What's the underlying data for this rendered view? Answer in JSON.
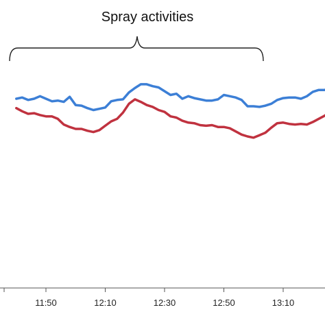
{
  "chart_data": {
    "type": "line",
    "annotation": "Spray activities",
    "x_ticks": [
      "11:50",
      "12:10",
      "12:30",
      "12:50",
      "13:10"
    ],
    "xlim": [
      -0.5,
      5.3
    ],
    "ylim": [
      0,
      1
    ],
    "grid": false,
    "series": [
      {
        "color": "#3c7fd6",
        "x": [
          -0.5,
          -0.4,
          -0.3,
          -0.2,
          -0.1,
          0.0,
          0.1,
          0.2,
          0.3,
          0.4,
          0.5,
          0.6,
          0.7,
          0.8,
          0.9,
          1.0,
          1.1,
          1.2,
          1.3,
          1.4,
          1.5,
          1.6,
          1.7,
          1.8,
          1.9,
          2.0,
          2.1,
          2.2,
          2.3,
          2.4,
          2.5,
          2.6,
          2.7,
          2.8,
          2.9,
          3.0,
          3.1,
          3.2,
          3.3,
          3.4,
          3.5,
          3.6,
          3.7,
          3.8,
          3.9,
          4.0,
          4.1,
          4.2,
          4.3,
          4.4,
          4.5,
          4.6,
          4.7,
          4.8,
          4.9,
          5.0,
          5.1,
          5.2,
          5.3
        ],
        "y": [
          0.772,
          0.774,
          0.77,
          0.772,
          0.776,
          0.772,
          0.768,
          0.769,
          0.767,
          0.775,
          0.762,
          0.761,
          0.757,
          0.754,
          0.756,
          0.758,
          0.768,
          0.77,
          0.771,
          0.782,
          0.789,
          0.795,
          0.795,
          0.792,
          0.79,
          0.784,
          0.778,
          0.78,
          0.772,
          0.776,
          0.773,
          0.771,
          0.769,
          0.769,
          0.771,
          0.778,
          0.776,
          0.774,
          0.77,
          0.76,
          0.76,
          0.759,
          0.761,
          0.764,
          0.77,
          0.773,
          0.774,
          0.774,
          0.772,
          0.776,
          0.783,
          0.786,
          0.786,
          0.79,
          0.791,
          0.795,
          0.799,
          0.81,
          0.815
        ]
      },
      {
        "color": "#c0323f",
        "x": [
          -0.5,
          -0.4,
          -0.3,
          -0.2,
          -0.1,
          0.0,
          0.1,
          0.2,
          0.3,
          0.4,
          0.5,
          0.6,
          0.7,
          0.8,
          0.9,
          1.0,
          1.1,
          1.2,
          1.3,
          1.4,
          1.5,
          1.6,
          1.7,
          1.8,
          1.9,
          2.0,
          2.1,
          2.2,
          2.3,
          2.4,
          2.5,
          2.6,
          2.7,
          2.8,
          2.9,
          3.0,
          3.1,
          3.2,
          3.3,
          3.4,
          3.5,
          3.6,
          3.7,
          3.8,
          3.9,
          4.0,
          4.1,
          4.2,
          4.3,
          4.4,
          4.5,
          4.6,
          4.7,
          4.8,
          4.9,
          5.0,
          5.1,
          5.2,
          5.3
        ],
        "y": [
          0.757,
          0.752,
          0.748,
          0.749,
          0.746,
          0.744,
          0.744,
          0.74,
          0.731,
          0.727,
          0.724,
          0.724,
          0.721,
          0.719,
          0.722,
          0.729,
          0.736,
          0.74,
          0.75,
          0.764,
          0.771,
          0.767,
          0.762,
          0.759,
          0.754,
          0.751,
          0.744,
          0.742,
          0.737,
          0.734,
          0.733,
          0.73,
          0.729,
          0.73,
          0.727,
          0.727,
          0.725,
          0.72,
          0.715,
          0.712,
          0.71,
          0.714,
          0.718,
          0.726,
          0.733,
          0.734,
          0.732,
          0.731,
          0.732,
          0.731,
          0.735,
          0.74,
          0.745,
          0.752,
          0.755,
          0.759,
          0.764,
          0.768,
          0.772
        ]
      }
    ]
  }
}
